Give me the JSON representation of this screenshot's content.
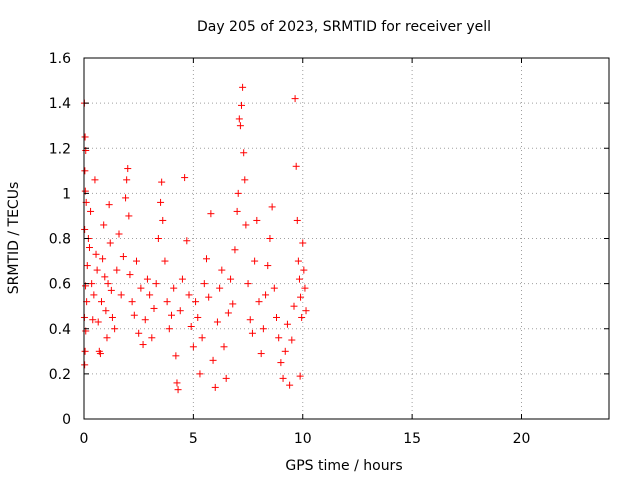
{
  "chart_data": {
    "type": "scatter",
    "title": "Day 205 of 2023, SRMTID for receiver yell",
    "xlabel": "GPS time / hours",
    "ylabel": "SRMTID / TECUs",
    "xlim": [
      0,
      24
    ],
    "ylim": [
      0,
      1.6
    ],
    "xticks": [
      0,
      5,
      10,
      15,
      20
    ],
    "xtick_labels": [
      "0",
      "5",
      "10",
      "15",
      "20"
    ],
    "yticks": [
      0,
      0.2,
      0.4,
      0.6,
      0.8,
      1.0,
      1.2,
      1.4,
      1.6
    ],
    "ytick_labels": [
      "0",
      "0.2",
      "0.4",
      "0.6",
      "0.8",
      "1",
      "1.2",
      "1.4",
      "1.6"
    ],
    "grid": true,
    "marker": "+",
    "color": "#ff0000",
    "series": [
      {
        "name": "SRMTID",
        "points": [
          [
            0.02,
            1.4
          ],
          [
            0.05,
            1.25
          ],
          [
            0.08,
            1.19
          ],
          [
            0.04,
            1.1
          ],
          [
            0.06,
            1.01
          ],
          [
            0.1,
            0.96
          ],
          [
            0.03,
            0.84
          ],
          [
            0.07,
            0.59
          ],
          [
            0.02,
            0.45
          ],
          [
            0.05,
            0.3
          ],
          [
            0.03,
            0.24
          ],
          [
            0.08,
            0.39
          ],
          [
            0.12,
            0.52
          ],
          [
            0.15,
            0.68
          ],
          [
            0.2,
            0.8
          ],
          [
            0.25,
            0.76
          ],
          [
            0.3,
            0.92
          ],
          [
            0.35,
            0.6
          ],
          [
            0.4,
            0.44
          ],
          [
            0.45,
            0.55
          ],
          [
            0.5,
            1.06
          ],
          [
            0.55,
            0.73
          ],
          [
            0.6,
            0.66
          ],
          [
            0.65,
            0.43
          ],
          [
            0.7,
            0.3
          ],
          [
            0.75,
            0.29
          ],
          [
            0.8,
            0.52
          ],
          [
            0.85,
            0.71
          ],
          [
            0.9,
            0.86
          ],
          [
            0.95,
            0.63
          ],
          [
            1.0,
            0.48
          ],
          [
            1.05,
            0.36
          ],
          [
            1.1,
            0.6
          ],
          [
            1.15,
            0.95
          ],
          [
            1.2,
            0.78
          ],
          [
            1.25,
            0.57
          ],
          [
            1.3,
            0.45
          ],
          [
            1.4,
            0.4
          ],
          [
            1.5,
            0.66
          ],
          [
            1.6,
            0.82
          ],
          [
            1.7,
            0.55
          ],
          [
            1.8,
            0.72
          ],
          [
            1.9,
            0.98
          ],
          [
            1.95,
            1.06
          ],
          [
            2.0,
            1.11
          ],
          [
            2.05,
            0.9
          ],
          [
            2.1,
            0.64
          ],
          [
            2.2,
            0.52
          ],
          [
            2.3,
            0.46
          ],
          [
            2.4,
            0.7
          ],
          [
            2.5,
            0.38
          ],
          [
            2.6,
            0.58
          ],
          [
            2.7,
            0.33
          ],
          [
            2.8,
            0.44
          ],
          [
            2.9,
            0.62
          ],
          [
            3.0,
            0.55
          ],
          [
            3.1,
            0.36
          ],
          [
            3.2,
            0.49
          ],
          [
            3.3,
            0.6
          ],
          [
            3.4,
            0.8
          ],
          [
            3.5,
            0.96
          ],
          [
            3.55,
            1.05
          ],
          [
            3.6,
            0.88
          ],
          [
            3.7,
            0.7
          ],
          [
            3.8,
            0.52
          ],
          [
            3.9,
            0.4
          ],
          [
            4.0,
            0.46
          ],
          [
            4.1,
            0.58
          ],
          [
            4.2,
            0.28
          ],
          [
            4.25,
            0.16
          ],
          [
            4.3,
            0.13
          ],
          [
            4.4,
            0.48
          ],
          [
            4.5,
            0.62
          ],
          [
            4.6,
            1.07
          ],
          [
            4.7,
            0.79
          ],
          [
            4.8,
            0.55
          ],
          [
            4.9,
            0.41
          ],
          [
            5.0,
            0.32
          ],
          [
            5.1,
            0.52
          ],
          [
            5.2,
            0.45
          ],
          [
            5.3,
            0.2
          ],
          [
            5.4,
            0.36
          ],
          [
            5.5,
            0.6
          ],
          [
            5.6,
            0.71
          ],
          [
            5.7,
            0.54
          ],
          [
            5.8,
            0.91
          ],
          [
            5.9,
            0.26
          ],
          [
            6.0,
            0.14
          ],
          [
            6.1,
            0.43
          ],
          [
            6.2,
            0.58
          ],
          [
            6.3,
            0.66
          ],
          [
            6.4,
            0.32
          ],
          [
            6.5,
            0.18
          ],
          [
            6.6,
            0.47
          ],
          [
            6.7,
            0.62
          ],
          [
            6.8,
            0.51
          ],
          [
            6.9,
            0.75
          ],
          [
            7.0,
            0.92
          ],
          [
            7.05,
            1.0
          ],
          [
            7.1,
            1.33
          ],
          [
            7.15,
            1.3
          ],
          [
            7.2,
            1.39
          ],
          [
            7.25,
            1.47
          ],
          [
            7.3,
            1.18
          ],
          [
            7.35,
            1.06
          ],
          [
            7.4,
            0.86
          ],
          [
            7.5,
            0.6
          ],
          [
            7.6,
            0.44
          ],
          [
            7.7,
            0.38
          ],
          [
            7.8,
            0.7
          ],
          [
            7.9,
            0.88
          ],
          [
            8.0,
            0.52
          ],
          [
            8.1,
            0.29
          ],
          [
            8.2,
            0.4
          ],
          [
            8.3,
            0.55
          ],
          [
            8.4,
            0.68
          ],
          [
            8.5,
            0.8
          ],
          [
            8.6,
            0.94
          ],
          [
            8.7,
            0.58
          ],
          [
            8.8,
            0.45
          ],
          [
            8.9,
            0.36
          ],
          [
            9.0,
            0.25
          ],
          [
            9.1,
            0.18
          ],
          [
            9.2,
            0.3
          ],
          [
            9.3,
            0.42
          ],
          [
            9.4,
            0.15
          ],
          [
            9.5,
            0.35
          ],
          [
            9.6,
            0.5
          ],
          [
            9.65,
            1.42
          ],
          [
            9.7,
            1.12
          ],
          [
            9.75,
            0.88
          ],
          [
            9.8,
            0.7
          ],
          [
            9.85,
            0.62
          ],
          [
            9.9,
            0.54
          ],
          [
            9.95,
            0.45
          ],
          [
            10.0,
            0.78
          ],
          [
            10.05,
            0.66
          ],
          [
            10.1,
            0.58
          ],
          [
            10.15,
            0.48
          ],
          [
            9.88,
            0.19
          ]
        ]
      }
    ]
  }
}
